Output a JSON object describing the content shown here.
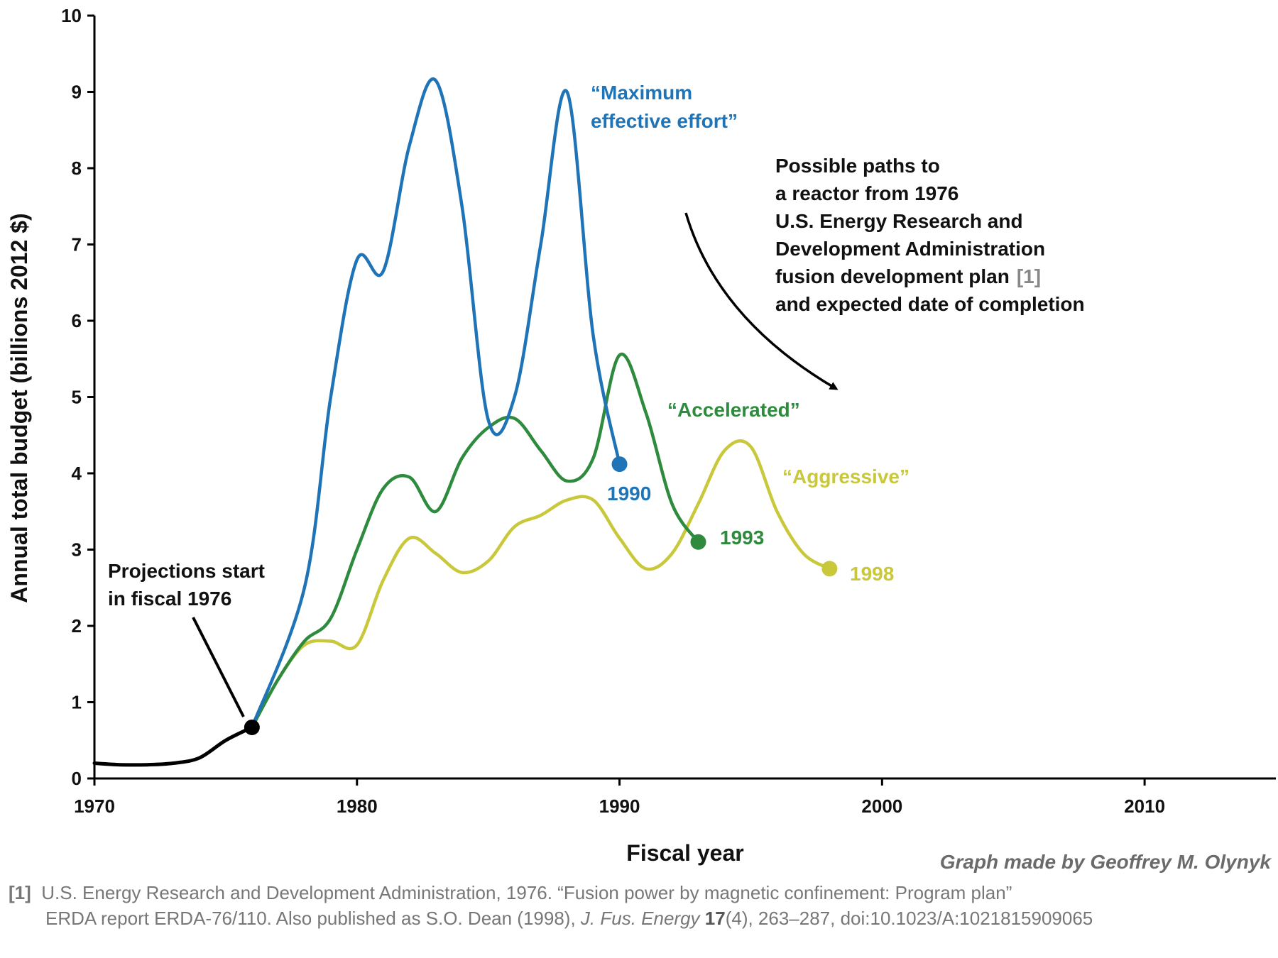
{
  "chart_data": {
    "type": "line",
    "xlabel": "Fiscal year",
    "ylabel": "Annual total budget (billions 2012 $)",
    "xlim": [
      1970,
      2015
    ],
    "ylim": [
      0,
      10
    ],
    "x_ticks": [
      "1970",
      "1980",
      "1990",
      "2000",
      "2010"
    ],
    "y_ticks": [
      "0",
      "1",
      "2",
      "3",
      "4",
      "5",
      "6",
      "7",
      "8",
      "9",
      "10"
    ],
    "series": [
      {
        "key": "historical",
        "color": "#000000",
        "x": [
          1970,
          1971,
          1972,
          1973,
          1974,
          1975,
          1976
        ],
        "y": [
          0.2,
          0.18,
          0.18,
          0.2,
          0.27,
          0.5,
          0.67
        ]
      },
      {
        "key": "maximum",
        "name": "“Maximum effective effort”",
        "end_label": "1990",
        "color": "#1f74b8",
        "x": [
          1976,
          1978,
          1979,
          1980,
          1981,
          1982,
          1983,
          1984,
          1985,
          1986,
          1987,
          1988,
          1989,
          1990
        ],
        "y": [
          0.67,
          2.5,
          5.0,
          6.8,
          6.65,
          8.3,
          9.15,
          7.5,
          4.7,
          5.0,
          7.0,
          9.0,
          5.8,
          4.12
        ]
      },
      {
        "key": "accelerated",
        "name": "“Accelerated”",
        "end_label": "1993",
        "color": "#2e8b3e",
        "x": [
          1976,
          1977,
          1978,
          1979,
          1980,
          1981,
          1982,
          1983,
          1984,
          1985,
          1986,
          1987,
          1988,
          1989,
          1990,
          1991,
          1992,
          1993
        ],
        "y": [
          0.67,
          1.3,
          1.8,
          2.1,
          3.0,
          3.8,
          3.95,
          3.5,
          4.2,
          4.6,
          4.72,
          4.3,
          3.9,
          4.2,
          5.55,
          4.8,
          3.6,
          3.1
        ]
      },
      {
        "key": "aggressive",
        "name": "“Aggressive”",
        "end_label": "1998",
        "color": "#c9c83a",
        "x": [
          1976,
          1977,
          1978,
          1979,
          1980,
          1981,
          1982,
          1983,
          1984,
          1985,
          1986,
          1987,
          1988,
          1989,
          1990,
          1991,
          1992,
          1993,
          1994,
          1995,
          1996,
          1997,
          1998
        ],
        "y": [
          0.67,
          1.3,
          1.75,
          1.8,
          1.75,
          2.6,
          3.15,
          2.95,
          2.7,
          2.85,
          3.3,
          3.45,
          3.65,
          3.65,
          3.15,
          2.75,
          2.95,
          3.6,
          4.3,
          4.35,
          3.5,
          2.95,
          2.75
        ]
      }
    ],
    "start_point": {
      "x": 1976,
      "y": 0.67
    },
    "annotations": {
      "start": [
        "Projections start",
        "in fiscal 1976"
      ],
      "paths": [
        "Possible paths to",
        "a reactor from 1976",
        "U.S. Energy Research and",
        "Development Administration",
        "fusion development plan",
        "and expected date of completion"
      ],
      "paths_ref": "[1]"
    }
  },
  "credit": "Graph made by Geoffrey M. Olynyk",
  "footnote": {
    "ref": "[1]",
    "line1": "U.S. Energy Research and Development Administration, 1976. “Fusion power by magnetic confinement: Program plan”",
    "line2_a": "ERDA report ERDA-76/110. Also published as S.O. Dean (1998), ",
    "journal": "J. Fus. Energy",
    "volume": "17",
    "line2_b": "(4), 263–287, doi:10.1023/A:1021815909065"
  }
}
